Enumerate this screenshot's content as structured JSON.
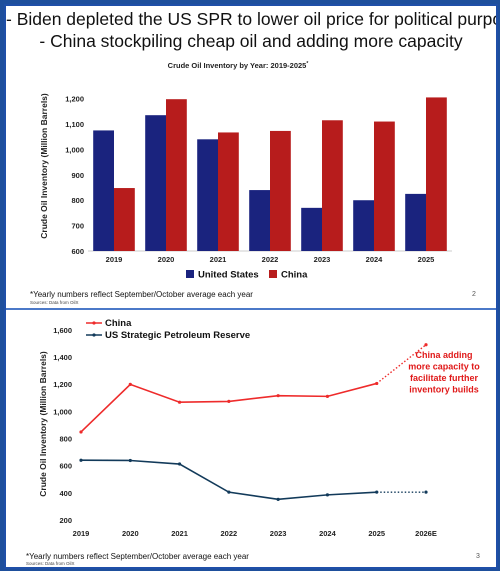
{
  "headline": {
    "line1": "- Biden depleted the US SPR to lower oil price for political purposes",
    "line2": "- China stockpiling cheap oil and adding more capacity"
  },
  "colors": {
    "us_bar": "#1a237e",
    "china_bar": "#b71c1c",
    "china_line": "#ee2b2b",
    "spr_line": "#123a5a",
    "annotation": "#e01919",
    "frame": "#1f4fa8"
  },
  "slide_top": {
    "footnote": "*Yearly numbers reflect September/October average each year",
    "source": "Sources: Data from OilX",
    "page": "2"
  },
  "slide_bottom": {
    "footnote": "*Yearly numbers reflect September/October average each year",
    "source": "Sources: Data from OilX",
    "page": "3"
  },
  "chart_data": [
    {
      "type": "bar",
      "title": "Crude Oil Inventory by Year: 2019-2025",
      "title_mark": "*",
      "xlabel": "",
      "ylabel": "Crude Oil Inventory (Million Barrels)",
      "categories": [
        "2019",
        "2020",
        "2021",
        "2022",
        "2023",
        "2024",
        "2025"
      ],
      "series": [
        {
          "name": "United States",
          "values": [
            1075,
            1135,
            1040,
            840,
            770,
            800,
            825
          ]
        },
        {
          "name": "China",
          "values": [
            848,
            1198,
            1067,
            1073,
            1115,
            1110,
            1205
          ]
        }
      ],
      "ylim": [
        600,
        1250
      ],
      "yticks": [
        "600",
        "700",
        "800",
        "900",
        "1,000",
        "1,100",
        "1,200"
      ],
      "legend": "bottom",
      "grid": false
    },
    {
      "type": "line",
      "title": "",
      "xlabel": "",
      "ylabel": "Crude Oil Inventory (Million Barrels)",
      "categories": [
        "2019",
        "2020",
        "2021",
        "2022",
        "2023",
        "2024",
        "2025",
        "2026E"
      ],
      "series": [
        {
          "name": "China",
          "values": [
            848,
            1198,
            1067,
            1073,
            1115,
            1110,
            1205,
            1490
          ],
          "projected_from": "2025"
        },
        {
          "name": "US Strategic Petroleum Reserve",
          "values": [
            640,
            638,
            612,
            405,
            352,
            385,
            405,
            405
          ],
          "projected_from": "2025"
        }
      ],
      "ylim": [
        200,
        1650
      ],
      "yticks": [
        "200",
        "400",
        "600",
        "800",
        "1,000",
        "1,200",
        "1,400",
        "1,600"
      ],
      "annotation": "China adding more capacity to facilitate further inventory builds",
      "legend": "top-left",
      "grid": false
    }
  ]
}
